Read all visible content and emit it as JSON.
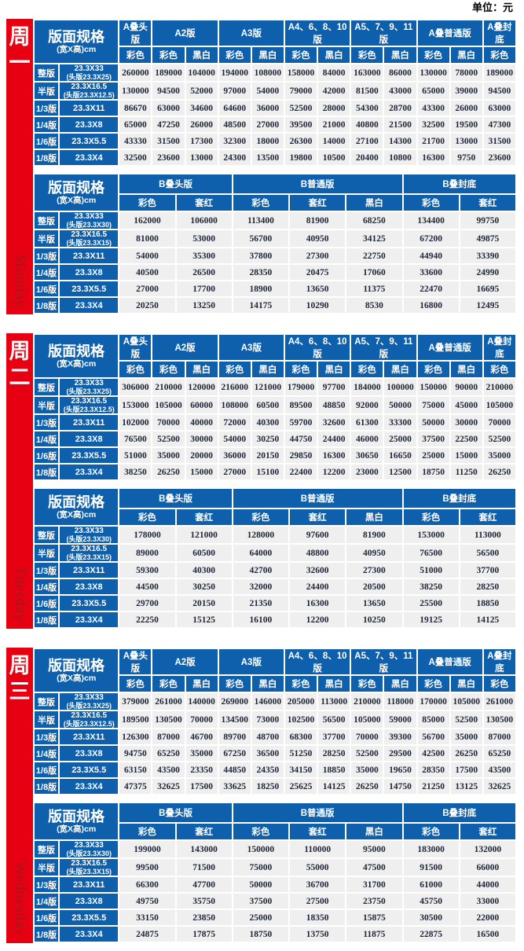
{
  "unit_label": "单位：元",
  "colors": {
    "sidebar_red": "#e60012",
    "sidebar_en_text": "#aa141d",
    "header_blue": "#0e5fac",
    "cell_gray": "#efefef",
    "number_text": "#1d2536"
  },
  "spec_header": {
    "title": "版面规格",
    "subtitle": "(宽X高)cm"
  },
  "a_table": {
    "groups": [
      {
        "label": "A叠头版",
        "subs": [
          "彩色"
        ]
      },
      {
        "label": "A2版",
        "subs": [
          "彩色",
          "黑白"
        ]
      },
      {
        "label": "A3版",
        "subs": [
          "彩色",
          "黑白"
        ]
      },
      {
        "label": "A4、6、8、10版",
        "subs": [
          "彩色",
          "黑白"
        ]
      },
      {
        "label": "A5、7、9、11版",
        "subs": [
          "彩色",
          "黑白"
        ]
      },
      {
        "label": "A叠普通版",
        "subs": [
          "彩色",
          "黑白"
        ]
      },
      {
        "label": "A叠封底",
        "subs": [
          "彩色"
        ]
      }
    ],
    "row_specs": [
      {
        "label": "整版",
        "spec": "23.3X33",
        "spec_note": "(头版23.3X25)"
      },
      {
        "label": "半版",
        "spec": "23.3X16.5",
        "spec_note": "(头版23.3X12.5)"
      },
      {
        "label": "1/3版",
        "spec": "23.3X11"
      },
      {
        "label": "1/4版",
        "spec": "23.3X8"
      },
      {
        "label": "1/6版",
        "spec": "23.3X5.5"
      },
      {
        "label": "1/8版",
        "spec": "23.3X4"
      }
    ]
  },
  "b_table": {
    "groups": [
      {
        "label": "B叠头版",
        "subs": [
          "彩色",
          "套红"
        ]
      },
      {
        "label": "B普通版",
        "subs": [
          "彩色",
          "套红",
          "黑白"
        ]
      },
      {
        "label": "B叠封底",
        "subs": [
          "彩色",
          "套红"
        ]
      }
    ],
    "row_specs": [
      {
        "label": "整版",
        "spec": "23.3X33",
        "spec_note": "(头版23.3X30)"
      },
      {
        "label": "半版",
        "spec": "23.3X16.5",
        "spec_note": "(头版23.3X15)"
      },
      {
        "label": "1/3版",
        "spec": "23.3X11"
      },
      {
        "label": "1/4版",
        "spec": "23.3X8"
      },
      {
        "label": "1/6版",
        "spec": "23.3X5.5"
      },
      {
        "label": "1/8版",
        "spec": "23.3X4"
      }
    ]
  },
  "days": [
    {
      "name_cn": "周一",
      "name_en": "Monday",
      "a_values": [
        [
          "260000",
          "189000",
          "104000",
          "194000",
          "108000",
          "158000",
          "84000",
          "163000",
          "86000",
          "130000",
          "78000",
          "189000"
        ],
        [
          "130000",
          "94500",
          "52000",
          "97000",
          "54000",
          "79000",
          "42000",
          "81500",
          "43000",
          "65000",
          "39000",
          "94500"
        ],
        [
          "86670",
          "63000",
          "34600",
          "64600",
          "36000",
          "52500",
          "28000",
          "54300",
          "28700",
          "43300",
          "26000",
          "63000"
        ],
        [
          "65000",
          "47250",
          "26000",
          "48500",
          "27000",
          "39500",
          "21000",
          "40800",
          "21500",
          "32500",
          "19500",
          "47300"
        ],
        [
          "43330",
          "31500",
          "17300",
          "32300",
          "18000",
          "26300",
          "14000",
          "27100",
          "14300",
          "21700",
          "13000",
          "31500"
        ],
        [
          "32500",
          "23600",
          "13000",
          "24300",
          "13500",
          "19800",
          "10500",
          "20400",
          "10800",
          "16300",
          "9750",
          "23600"
        ]
      ],
      "b_values": [
        [
          "162000",
          "106000",
          "113400",
          "81900",
          "68250",
          "134400",
          "99750"
        ],
        [
          "81000",
          "53000",
          "56700",
          "40950",
          "34125",
          "67200",
          "49875"
        ],
        [
          "54000",
          "35300",
          "37800",
          "27300",
          "22750",
          "44940",
          "33390"
        ],
        [
          "40500",
          "26500",
          "28350",
          "20475",
          "17060",
          "33600",
          "24990"
        ],
        [
          "27000",
          "17700",
          "18900",
          "13650",
          "11375",
          "22470",
          "16695"
        ],
        [
          "20250",
          "13250",
          "14175",
          "10290",
          "8530",
          "16800",
          "12495"
        ]
      ]
    },
    {
      "name_cn": "周二",
      "name_en": "Tuesday",
      "a_values": [
        [
          "306000",
          "210000",
          "120000",
          "216000",
          "121000",
          "179000",
          "97700",
          "184000",
          "100000",
          "150000",
          "90000",
          "210000"
        ],
        [
          "153000",
          "105000",
          "60000",
          "108000",
          "60500",
          "89500",
          "48850",
          "92000",
          "50000",
          "75000",
          "45000",
          "105000"
        ],
        [
          "102000",
          "70000",
          "40000",
          "72000",
          "40300",
          "59700",
          "32600",
          "61300",
          "33300",
          "50000",
          "30000",
          "70000"
        ],
        [
          "76500",
          "52500",
          "30000",
          "54000",
          "30250",
          "44750",
          "24400",
          "46000",
          "25000",
          "37500",
          "22500",
          "52500"
        ],
        [
          "51000",
          "35000",
          "20000",
          "36000",
          "20150",
          "29850",
          "16300",
          "30650",
          "16650",
          "25000",
          "15000",
          "35000"
        ],
        [
          "38250",
          "26250",
          "15000",
          "27000",
          "15100",
          "22400",
          "12200",
          "23000",
          "12500",
          "18750",
          "11250",
          "26250"
        ]
      ],
      "b_values": [
        [
          "178000",
          "121000",
          "128000",
          "97600",
          "81900",
          "153000",
          "113000"
        ],
        [
          "89000",
          "60500",
          "64000",
          "48800",
          "40950",
          "76500",
          "56500"
        ],
        [
          "59300",
          "40300",
          "42700",
          "32600",
          "27300",
          "51000",
          "37700"
        ],
        [
          "44500",
          "30250",
          "32000",
          "24400",
          "20500",
          "38250",
          "28250"
        ],
        [
          "29700",
          "20150",
          "21350",
          "16300",
          "13650",
          "25500",
          "18850"
        ],
        [
          "22250",
          "15125",
          "16100",
          "12200",
          "10250",
          "19125",
          "14125"
        ]
      ]
    },
    {
      "name_cn": "周三",
      "name_en": "Wednesday",
      "a_values": [
        [
          "379000",
          "261000",
          "140000",
          "269000",
          "146000",
          "205000",
          "113000",
          "210000",
          "118000",
          "170000",
          "105000",
          "261000"
        ],
        [
          "189500",
          "130500",
          "70000",
          "134500",
          "73000",
          "102500",
          "56500",
          "105000",
          "59000",
          "85000",
          "52500",
          "130500"
        ],
        [
          "126300",
          "87000",
          "46700",
          "89700",
          "48700",
          "68300",
          "37700",
          "70000",
          "39300",
          "56700",
          "35000",
          "87000"
        ],
        [
          "94750",
          "65250",
          "35000",
          "67250",
          "36500",
          "51250",
          "28250",
          "52500",
          "29500",
          "42500",
          "26250",
          "65250"
        ],
        [
          "63150",
          "43500",
          "23350",
          "44850",
          "24350",
          "34150",
          "18850",
          "35000",
          "19650",
          "28350",
          "17500",
          "43500"
        ],
        [
          "47375",
          "32625",
          "17500",
          "33625",
          "18250",
          "25625",
          "14125",
          "26250",
          "14750",
          "21250",
          "13125",
          "32625"
        ]
      ],
      "b_values": [
        [
          "199000",
          "143000",
          "150000",
          "110000",
          "95000",
          "183000",
          "132000"
        ],
        [
          "99500",
          "71500",
          "75000",
          "55000",
          "47500",
          "91500",
          "66000"
        ],
        [
          "66300",
          "47700",
          "50000",
          "36700",
          "31700",
          "61000",
          "44000"
        ],
        [
          "49750",
          "35750",
          "37500",
          "27500",
          "23750",
          "45750",
          "33000"
        ],
        [
          "33150",
          "23850",
          "25000",
          "18350",
          "15875",
          "30500",
          "22000"
        ],
        [
          "24875",
          "17875",
          "18750",
          "13750",
          "11875",
          "22875",
          "16500"
        ]
      ]
    }
  ]
}
